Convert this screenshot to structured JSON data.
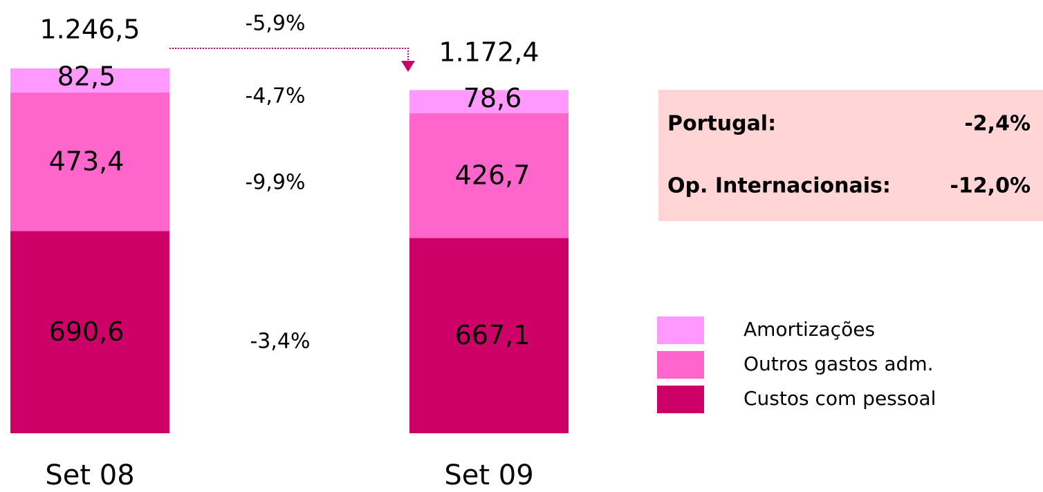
{
  "chart_data": {
    "type": "stacked_bar",
    "categories": [
      "Set 08",
      "Set 09"
    ],
    "series": [
      {
        "name": "Custos com pessoal",
        "color": "#cc0066",
        "values": [
          690.6,
          667.1
        ],
        "value_labels": [
          "690,6",
          "667,1"
        ]
      },
      {
        "name": "Outros gastos adm.",
        "color": "#ff66cc",
        "values": [
          473.4,
          426.7
        ],
        "value_labels": [
          "473,4",
          "426,7"
        ]
      },
      {
        "name": "Amortizações",
        "color": "#ff99ff",
        "values": [
          82.5,
          78.6
        ],
        "value_labels": [
          "82,5",
          "78,6"
        ]
      }
    ],
    "totals": [
      1246.5,
      1172.4
    ],
    "total_labels": [
      "1.246,5",
      "1.172,4"
    ],
    "total_change": "-5,9%",
    "series_changes": [
      "-3,4%",
      "-9,9%",
      "-4,7%"
    ],
    "ylim": [
      0,
      1250
    ],
    "annotations": [
      {
        "label": "Portugal:",
        "value": "-2,4%"
      },
      {
        "label": "Op. Internacionais:",
        "value": "-12,0%"
      }
    ]
  }
}
